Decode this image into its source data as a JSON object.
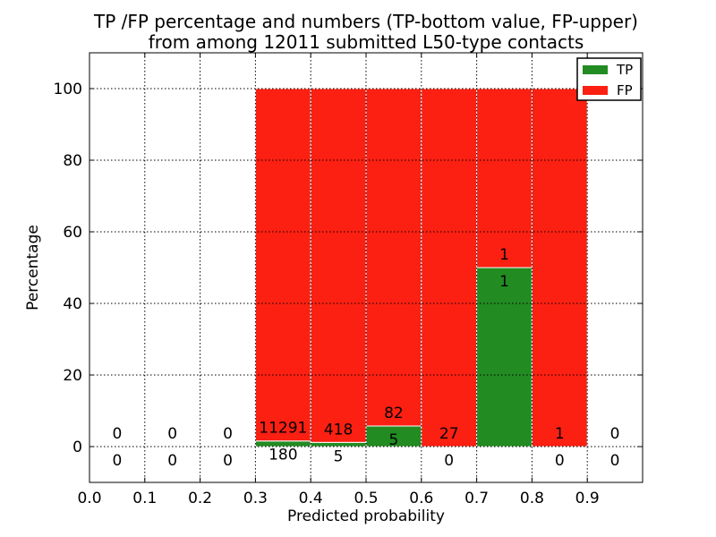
{
  "figure": {
    "title_line1": "TP /FP percentage and numbers (TP-bottom value, FP-upper)",
    "title_line2": "from among 12011 submitted L50-type contacts",
    "xlabel": "Predicted probability",
    "ylabel": "Percentage"
  },
  "colors": {
    "tp": "#228b22",
    "fp": "#fb2012",
    "bar_edge": "#ffffff",
    "grid": "#000000",
    "axis": "#000000",
    "background": "#ffffff",
    "text": "#000000"
  },
  "legend": {
    "position": "upper-right",
    "items": [
      {
        "label": "TP",
        "color_key": "tp"
      },
      {
        "label": "FP",
        "color_key": "fp"
      }
    ]
  },
  "chart_data": {
    "type": "bar",
    "stacked": true,
    "title": "TP /FP percentage and numbers (TP-bottom value, FP-upper) from among 12011 submitted L50-type contacts",
    "xlabel": "Predicted probability",
    "ylabel": "Percentage",
    "total_contacts": 12011,
    "xlim": [
      0.0,
      1.0
    ],
    "ylim": [
      -10,
      110
    ],
    "x_ticks": [
      "0.0",
      "0.1",
      "0.2",
      "0.3",
      "0.4",
      "0.5",
      "0.6",
      "0.7",
      "0.8",
      "0.9"
    ],
    "y_ticks": [
      0,
      20,
      40,
      60,
      80,
      100
    ],
    "grid": true,
    "grid_style": "dotted",
    "legend_position": "upper right",
    "series_names": [
      "TP",
      "FP"
    ],
    "bins": [
      {
        "start": 0.0,
        "end": 0.1,
        "tp": 0,
        "fp": 0,
        "tp_pct": 0,
        "fp_pct": 0,
        "bar": false
      },
      {
        "start": 0.1,
        "end": 0.2,
        "tp": 0,
        "fp": 0,
        "tp_pct": 0,
        "fp_pct": 0,
        "bar": false
      },
      {
        "start": 0.2,
        "end": 0.3,
        "tp": 0,
        "fp": 0,
        "tp_pct": 0,
        "fp_pct": 0,
        "bar": false
      },
      {
        "start": 0.3,
        "end": 0.4,
        "tp": 180,
        "fp": 11291,
        "tp_pct": 1.57,
        "fp_pct": 98.43,
        "bar": true
      },
      {
        "start": 0.4,
        "end": 0.5,
        "tp": 5,
        "fp": 418,
        "tp_pct": 1.18,
        "fp_pct": 98.82,
        "bar": true
      },
      {
        "start": 0.5,
        "end": 0.6,
        "tp": 5,
        "fp": 82,
        "tp_pct": 5.75,
        "fp_pct": 94.25,
        "bar": true
      },
      {
        "start": 0.6,
        "end": 0.7,
        "tp": 0,
        "fp": 27,
        "tp_pct": 0,
        "fp_pct": 100,
        "bar": true
      },
      {
        "start": 0.7,
        "end": 0.8,
        "tp": 1,
        "fp": 1,
        "tp_pct": 50,
        "fp_pct": 50,
        "bar": true
      },
      {
        "start": 0.8,
        "end": 0.9,
        "tp": 0,
        "fp": 1,
        "tp_pct": 0,
        "fp_pct": 100,
        "bar": true
      },
      {
        "start": 0.9,
        "end": 1.0,
        "tp": 0,
        "fp": 0,
        "tp_pct": 0,
        "fp_pct": 0,
        "bar": false
      }
    ]
  }
}
